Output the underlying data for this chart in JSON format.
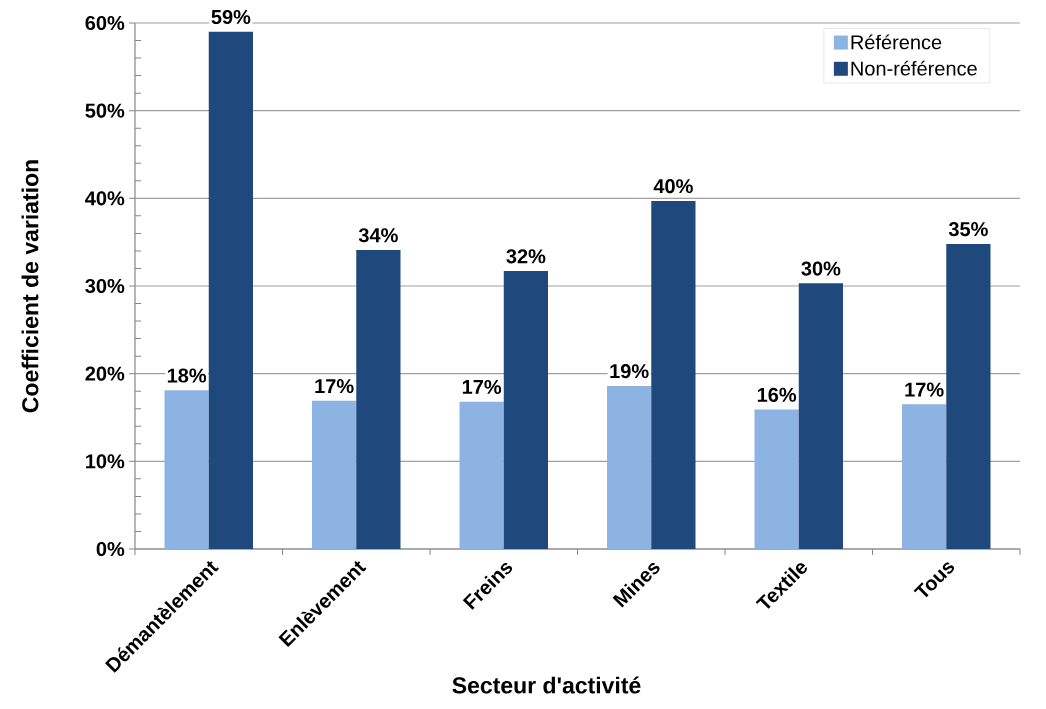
{
  "chart_data": {
    "type": "bar",
    "xlabel": "Secteur d'activité",
    "ylabel": "Coefficient de variation",
    "categories": [
      "Démantèlement",
      "Enlèvement",
      "Freins",
      "Mines",
      "Textile",
      "Tous"
    ],
    "series": [
      {
        "name": "Référence",
        "color": "#8DB3E2",
        "values": [
          18.1,
          16.9,
          16.8,
          18.6,
          15.9,
          16.5
        ],
        "value_labels": [
          "18%",
          "17%",
          "17%",
          "19%",
          "16%",
          "17%"
        ]
      },
      {
        "name": "Non-référence",
        "color": "#1F497D",
        "values": [
          59,
          34.1,
          31.7,
          39.7,
          30.3,
          34.8
        ],
        "value_labels": [
          "59%",
          "34%",
          "32%",
          "40%",
          "30%",
          "35%"
        ]
      }
    ],
    "ylim": [
      0,
      60
    ],
    "yticks": [
      {
        "value": 0,
        "label": "0%"
      },
      {
        "value": 10,
        "label": "10%"
      },
      {
        "value": 20,
        "label": "20%"
      },
      {
        "value": 30,
        "label": "30%"
      },
      {
        "value": 40,
        "label": "40%"
      },
      {
        "value": 50,
        "label": "50%"
      },
      {
        "value": 60,
        "label": "60%"
      }
    ],
    "grid": "y",
    "legend": "top right"
  }
}
